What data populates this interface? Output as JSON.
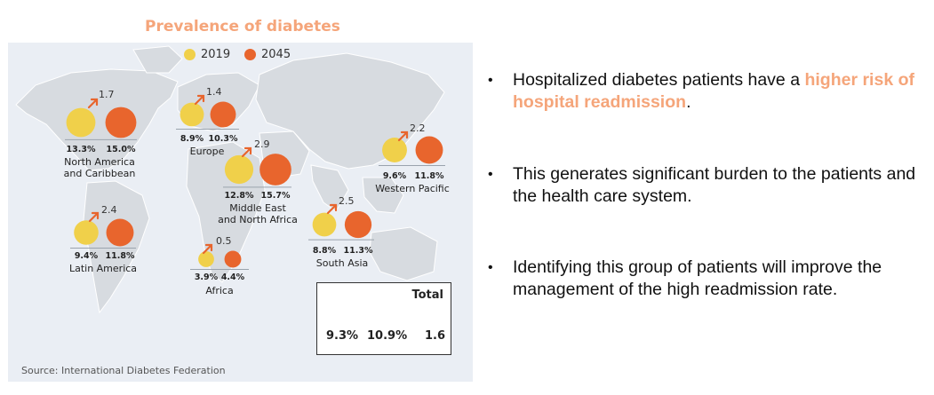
{
  "chart_data": {
    "type": "bubble-map",
    "title": "Prevalence of diabetes",
    "legend": [
      {
        "label": "2019",
        "color": "#f0d04a"
      },
      {
        "label": "2045",
        "color": "#e8652d"
      }
    ],
    "regions": [
      {
        "name": "North America and Caribbean",
        "v2019": 13.3,
        "v2045": 15.0,
        "v2019_label": "13.3%",
        "v2045_label": "15.0%",
        "increase": "1.7"
      },
      {
        "name": "Europe",
        "v2019": 8.9,
        "v2045": 10.3,
        "v2019_label": "8.9%",
        "v2045_label": "10.3%",
        "increase": "1.4"
      },
      {
        "name": "Middle East and North Africa",
        "v2019": 12.8,
        "v2045": 15.7,
        "v2019_label": "12.8%",
        "v2045_label": "15.7%",
        "increase": "2.9"
      },
      {
        "name": "Western Pacific",
        "v2019": 9.6,
        "v2045": 11.8,
        "v2019_label": "9.6%",
        "v2045_label": "11.8%",
        "increase": "2.2"
      },
      {
        "name": "South Asia",
        "v2019": 8.8,
        "v2045": 11.3,
        "v2019_label": "8.8%",
        "v2045_label": "11.3%",
        "increase": "2.5"
      },
      {
        "name": "Latin America",
        "v2019": 9.4,
        "v2045": 11.8,
        "v2019_label": "9.4%",
        "v2045_label": "11.8%",
        "increase": "2.4"
      },
      {
        "name": "Africa",
        "v2019": 3.9,
        "v2045": 4.4,
        "v2019_label": "3.9%",
        "v2045_label": "4.4%",
        "increase": "0.5"
      }
    ],
    "total": {
      "label": "Total",
      "v2019": 9.3,
      "v2045": 10.9,
      "v2019_label": "9.3%",
      "v2045_label": "10.9%",
      "increase": "1.6"
    },
    "source": "Source: International Diabetes Federation"
  },
  "labels": {
    "north_america": [
      "North America",
      "and Caribbean"
    ],
    "europe": [
      "Europe"
    ],
    "middle_east": [
      "Middle East",
      "and North Africa"
    ],
    "western_pacific": [
      "Western Pacific"
    ],
    "south_asia": [
      "South Asia"
    ],
    "latin_america": [
      "Latin America"
    ],
    "africa": [
      "Africa"
    ]
  },
  "bullets": {
    "mark": "•",
    "b1_pre": "Hospitalized diabetes patients have a ",
    "b1_hl": "higher risk of hospital readmission",
    "b1_post": ".",
    "b2": "This generates significant burden to the patients and the health care system.",
    "b3": "Identifying this group of patients will improve the management of the high readmission rate."
  },
  "colors": {
    "c2019": "#f0d04a",
    "c2045": "#e8652d",
    "arrow": "#e8652d",
    "title": "#f5a57a",
    "map": "#d7dbe0"
  }
}
